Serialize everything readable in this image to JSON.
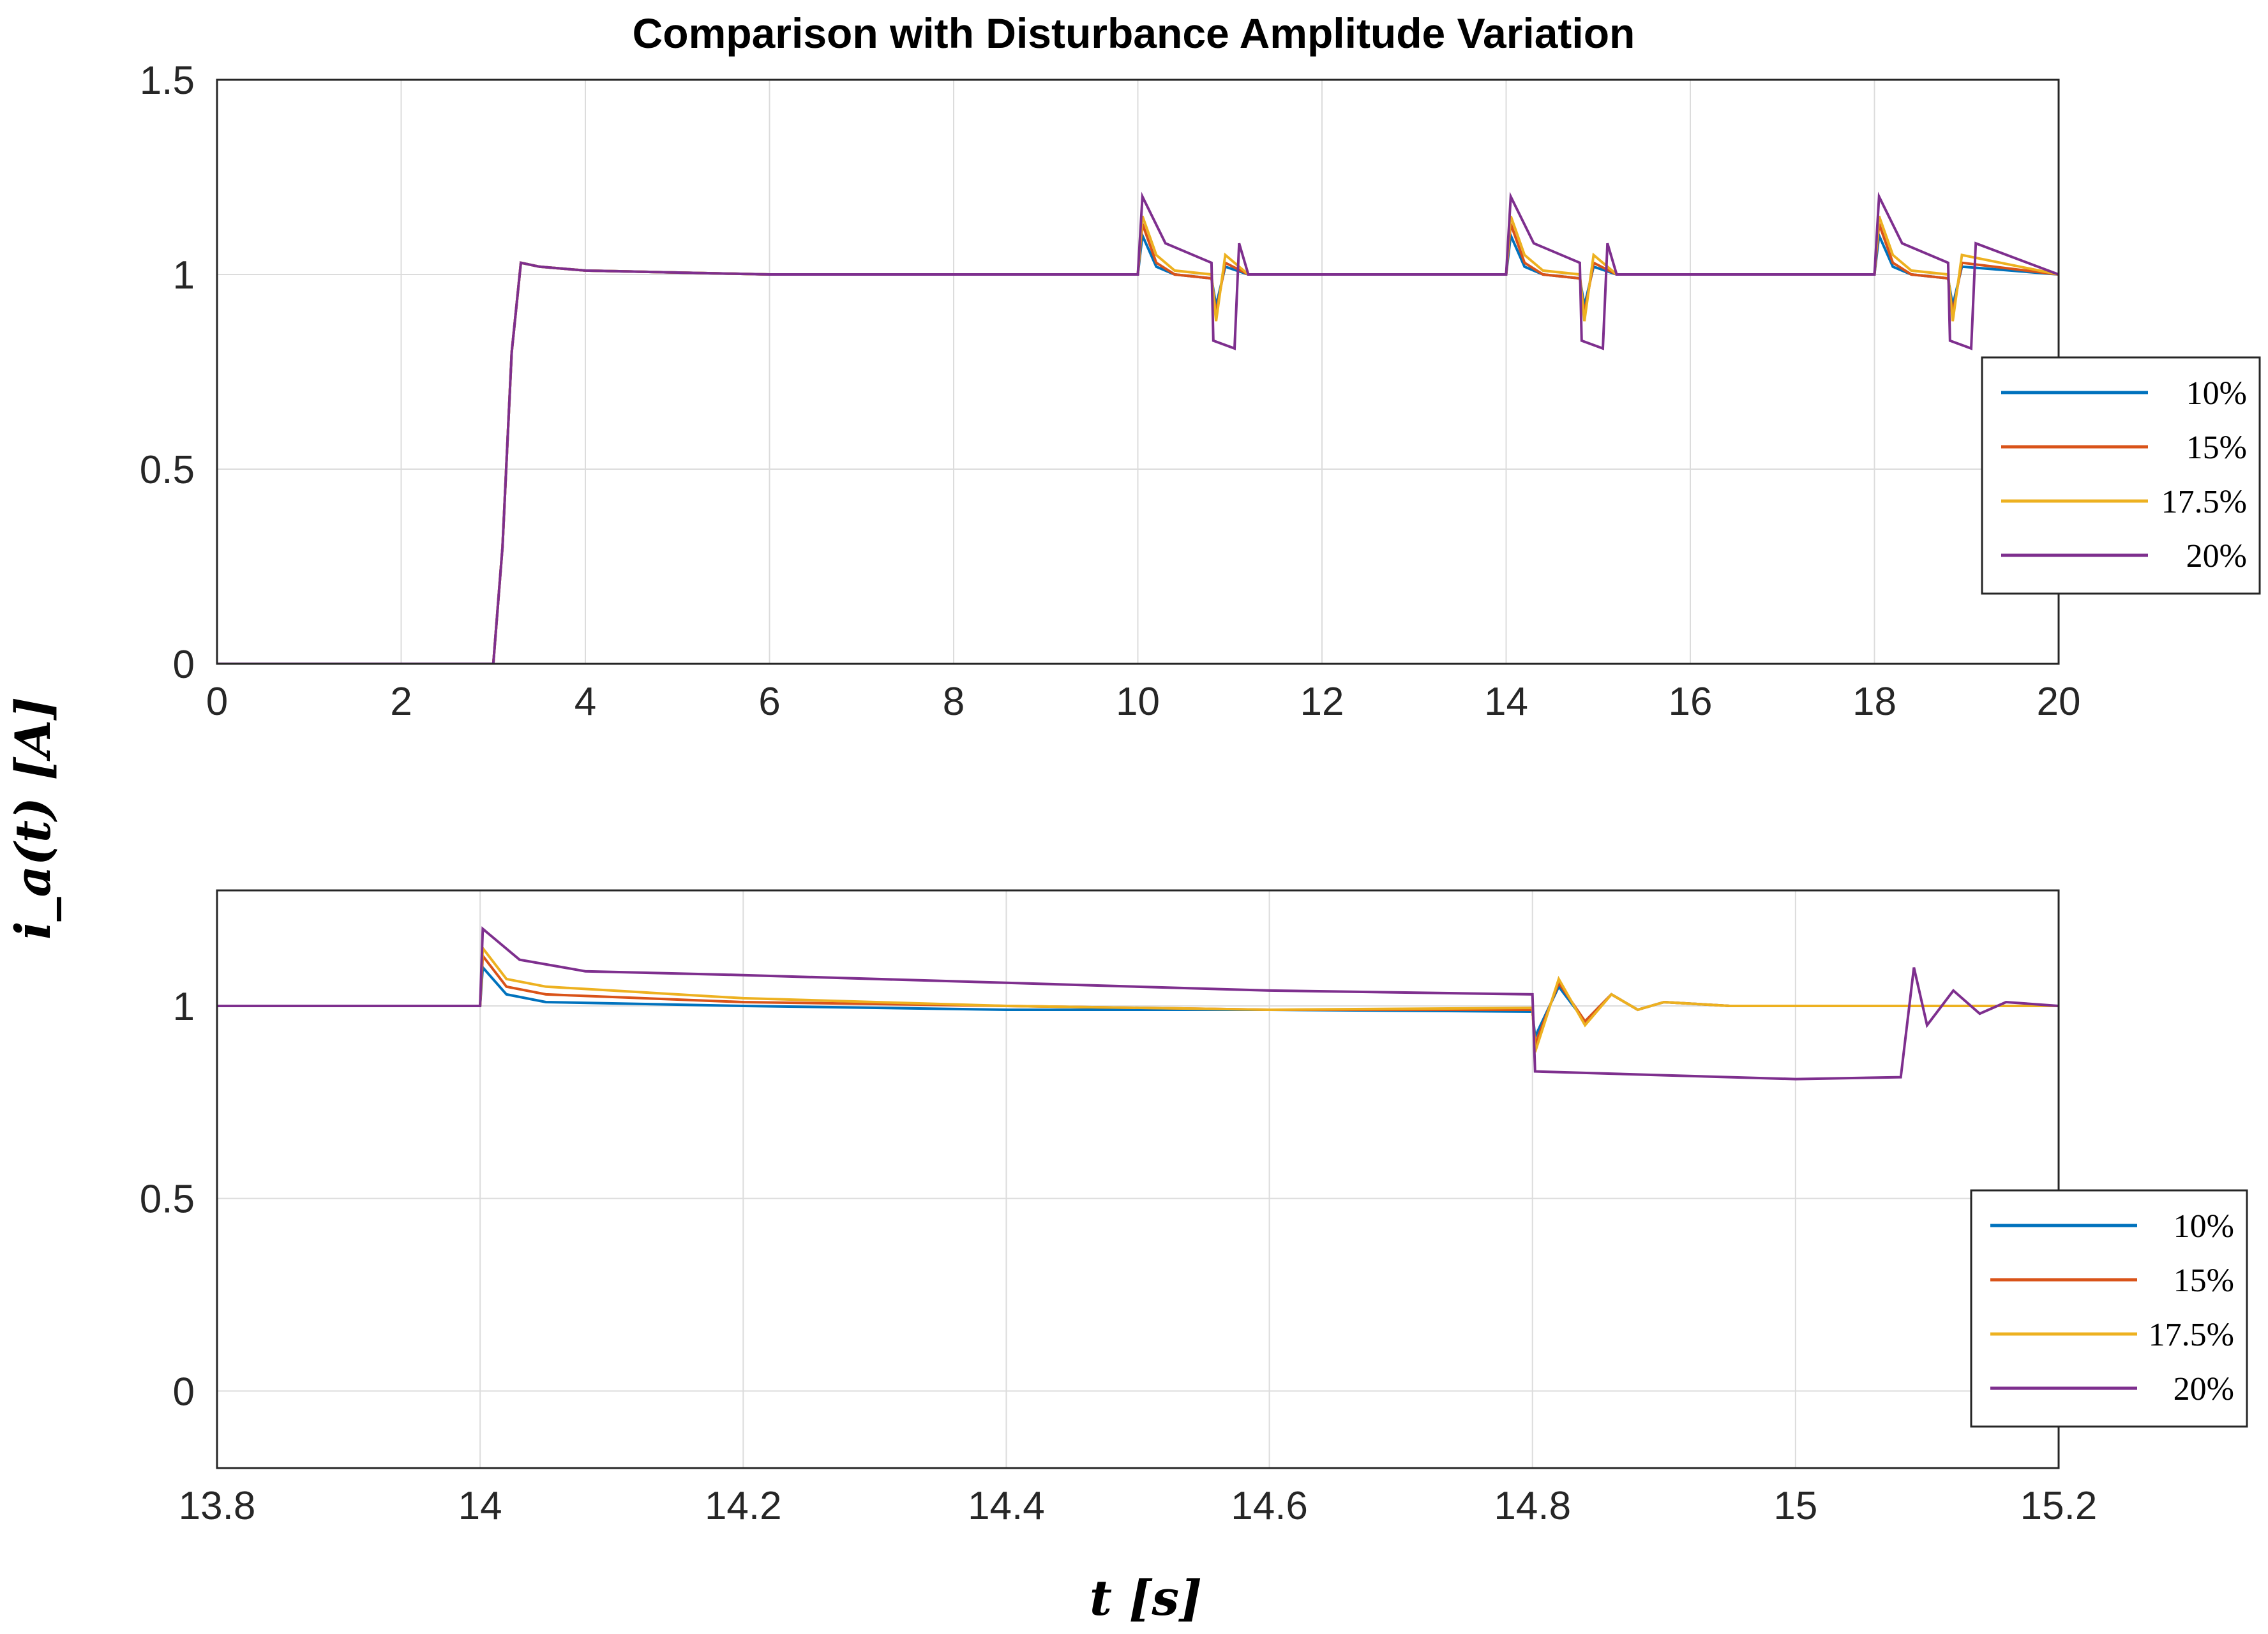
{
  "chart_data": [
    {
      "type": "line",
      "title": "Comparison with Disturbance Amplitude Variation",
      "xlim": [
        0,
        20
      ],
      "ylim": [
        0,
        1.5
      ],
      "xticks": [
        "0",
        "2",
        "4",
        "6",
        "8",
        "10",
        "12",
        "14",
        "16",
        "18",
        "20"
      ],
      "yticks": [
        "0",
        "0.5",
        "1",
        "1.5"
      ],
      "grid": true,
      "legend_location": "right",
      "legend": [
        "10%",
        "15%",
        "17.5%",
        "20%"
      ],
      "series": [
        {
          "name": "10%",
          "color": "#0072BD",
          "x": [
            0,
            3.0,
            3.1,
            3.2,
            3.3,
            3.5,
            4,
            6,
            10,
            10.05,
            10.2,
            10.4,
            10.8,
            10.85,
            10.95,
            11.2,
            14,
            14.05,
            14.2,
            14.4,
            14.8,
            14.85,
            14.95,
            15.2,
            18,
            18.05,
            18.2,
            18.4,
            18.8,
            18.85,
            18.95,
            20
          ],
          "y": [
            0,
            0.0,
            0.3,
            0.8,
            1.03,
            1.02,
            1.01,
            1.0,
            1.0,
            1.1,
            1.02,
            1.0,
            0.99,
            0.92,
            1.02,
            1.0,
            1.0,
            1.1,
            1.02,
            1.0,
            0.99,
            0.92,
            1.02,
            1.0,
            1.0,
            1.1,
            1.02,
            1.0,
            0.99,
            0.92,
            1.02,
            1.0
          ]
        },
        {
          "name": "15%",
          "color": "#D95319",
          "x": [
            0,
            3.0,
            3.1,
            3.2,
            3.3,
            3.5,
            4,
            6,
            10,
            10.05,
            10.2,
            10.4,
            10.8,
            10.85,
            10.95,
            11.2,
            14,
            14.05,
            14.2,
            14.4,
            14.8,
            14.85,
            14.95,
            15.2,
            18,
            18.05,
            18.2,
            18.4,
            18.8,
            18.85,
            18.95,
            20
          ],
          "y": [
            0,
            0.0,
            0.3,
            0.8,
            1.03,
            1.02,
            1.01,
            1.0,
            1.0,
            1.13,
            1.03,
            1.0,
            0.99,
            0.9,
            1.03,
            1.0,
            1.0,
            1.13,
            1.03,
            1.0,
            0.99,
            0.9,
            1.03,
            1.0,
            1.0,
            1.13,
            1.03,
            1.0,
            0.99,
            0.9,
            1.03,
            1.0
          ]
        },
        {
          "name": "17.5%",
          "color": "#EDB120",
          "x": [
            0,
            3.0,
            3.1,
            3.2,
            3.3,
            3.5,
            4,
            6,
            10,
            10.05,
            10.2,
            10.4,
            10.8,
            10.85,
            10.95,
            11.2,
            14,
            14.05,
            14.2,
            14.4,
            14.8,
            14.85,
            14.95,
            15.2,
            18,
            18.05,
            18.2,
            18.4,
            18.8,
            18.85,
            18.95,
            20
          ],
          "y": [
            0,
            0.0,
            0.3,
            0.8,
            1.03,
            1.02,
            1.01,
            1.0,
            1.0,
            1.15,
            1.05,
            1.01,
            1.0,
            0.88,
            1.05,
            1.0,
            1.0,
            1.15,
            1.05,
            1.01,
            1.0,
            0.88,
            1.05,
            1.0,
            1.0,
            1.15,
            1.05,
            1.01,
            1.0,
            0.88,
            1.05,
            1.0
          ]
        },
        {
          "name": "20%",
          "color": "#7E2F8E",
          "x": [
            0,
            3.0,
            3.1,
            3.2,
            3.3,
            3.5,
            4,
            6,
            10,
            10.05,
            10.3,
            10.8,
            10.82,
            11.05,
            11.1,
            11.2,
            14,
            14.05,
            14.3,
            14.8,
            14.82,
            15.05,
            15.1,
            15.2,
            18,
            18.05,
            18.3,
            18.8,
            18.82,
            19.05,
            19.1,
            20
          ],
          "y": [
            0,
            0.0,
            0.3,
            0.8,
            1.03,
            1.02,
            1.01,
            1.0,
            1.0,
            1.2,
            1.08,
            1.03,
            0.83,
            0.81,
            1.08,
            1.0,
            1.0,
            1.2,
            1.08,
            1.03,
            0.83,
            0.81,
            1.08,
            1.0,
            1.0,
            1.2,
            1.08,
            1.03,
            0.83,
            0.81,
            1.08,
            1.0
          ]
        }
      ]
    },
    {
      "type": "line",
      "xlim": [
        13.8,
        15.2
      ],
      "ylim": [
        -0.2,
        1.3
      ],
      "xticks": [
        "13.8",
        "14",
        "14.2",
        "14.4",
        "14.6",
        "14.8",
        "15",
        "15.2"
      ],
      "yticks": [
        "0",
        "0.5",
        "1"
      ],
      "xlabel": "t [s]",
      "ylabel": "i_a(t) [A]",
      "grid": true,
      "legend_location": "right",
      "legend": [
        "10%",
        "15%",
        "17.5%",
        "20%"
      ],
      "series": [
        {
          "name": "10%",
          "color": "#0072BD",
          "x": [
            13.8,
            14.0,
            14.002,
            14.02,
            14.05,
            14.2,
            14.4,
            14.6,
            14.8,
            14.802,
            14.82,
            14.84,
            14.86,
            14.88,
            14.9,
            14.95,
            15.0,
            15.2
          ],
          "y": [
            1.0,
            1.0,
            1.1,
            1.03,
            1.01,
            1.0,
            0.99,
            0.99,
            0.985,
            0.92,
            1.05,
            0.96,
            1.03,
            0.99,
            1.01,
            1.0,
            1.0,
            1.0
          ]
        },
        {
          "name": "15%",
          "color": "#D95319",
          "x": [
            13.8,
            14.0,
            14.002,
            14.02,
            14.05,
            14.2,
            14.4,
            14.6,
            14.8,
            14.802,
            14.82,
            14.84,
            14.86,
            14.88,
            14.9,
            14.95,
            15.0,
            15.2
          ],
          "y": [
            1.0,
            1.0,
            1.13,
            1.05,
            1.03,
            1.01,
            1.0,
            0.99,
            0.99,
            0.9,
            1.06,
            0.96,
            1.03,
            0.99,
            1.01,
            1.0,
            1.0,
            1.0
          ]
        },
        {
          "name": "17.5%",
          "color": "#EDB120",
          "x": [
            13.8,
            14.0,
            14.002,
            14.02,
            14.05,
            14.2,
            14.4,
            14.6,
            14.8,
            14.802,
            14.82,
            14.84,
            14.86,
            14.88,
            14.9,
            14.95,
            15.0,
            15.2
          ],
          "y": [
            1.0,
            1.0,
            1.15,
            1.07,
            1.05,
            1.02,
            1.0,
            0.99,
            0.995,
            0.88,
            1.07,
            0.95,
            1.03,
            0.99,
            1.01,
            1.0,
            1.0,
            1.0
          ]
        },
        {
          "name": "20%",
          "color": "#7E2F8E",
          "x": [
            13.8,
            14.0,
            14.002,
            14.03,
            14.08,
            14.2,
            14.4,
            14.6,
            14.8,
            14.802,
            14.9,
            15.0,
            15.08,
            15.09,
            15.1,
            15.12,
            15.14,
            15.16,
            15.2
          ],
          "y": [
            1.0,
            1.0,
            1.2,
            1.12,
            1.09,
            1.08,
            1.06,
            1.04,
            1.03,
            0.83,
            0.82,
            0.81,
            0.815,
            1.1,
            0.95,
            1.04,
            0.98,
            1.01,
            1.0
          ]
        }
      ]
    }
  ]
}
